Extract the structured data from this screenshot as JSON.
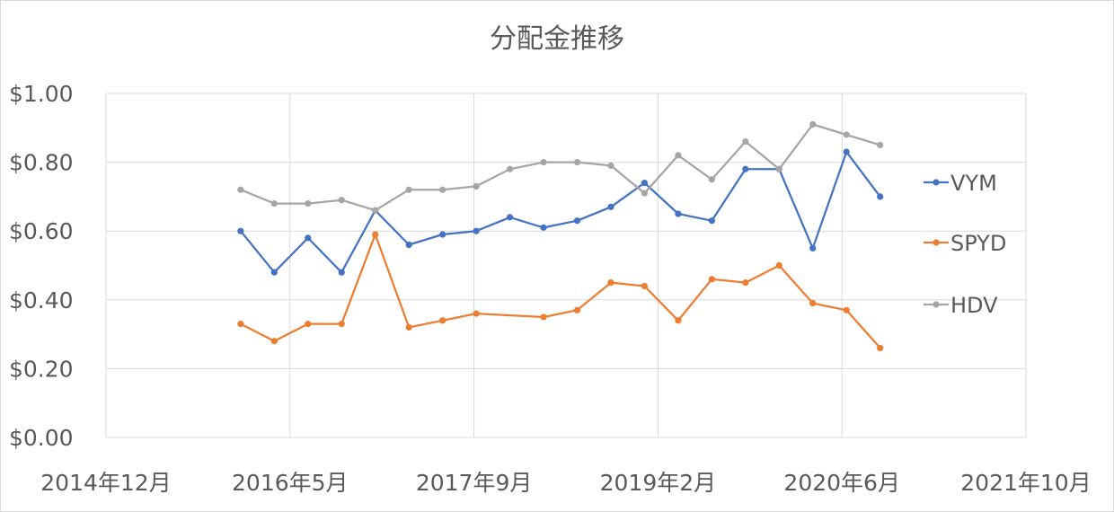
{
  "chart_data": {
    "type": "line",
    "title": "分配金推移",
    "xlabel": "",
    "ylabel": "",
    "ylim": [
      0,
      1
    ],
    "y_ticks": [
      "$0.00",
      "$0.20",
      "$0.40",
      "$0.60",
      "$0.80",
      "$1.00"
    ],
    "xlim": [
      "2014-12",
      "2021-10"
    ],
    "x_ticks": [
      "2014年12月",
      "2016年5月",
      "2017年9月",
      "2019年2月",
      "2020年6月",
      "2021年10月"
    ],
    "grid": true,
    "legend_position": "right",
    "x": [
      "2015-12",
      "2016-03",
      "2016-06",
      "2016-09",
      "2016-12",
      "2017-03",
      "2017-06",
      "2017-09",
      "2017-12",
      "2018-03",
      "2018-06",
      "2018-09",
      "2018-12",
      "2019-03",
      "2019-06",
      "2019-09",
      "2019-12",
      "2020-03",
      "2020-06",
      "2020-09"
    ],
    "series": [
      {
        "name": "VYM",
        "color": "#4472c4",
        "values": [
          0.6,
          0.48,
          0.58,
          0.48,
          0.66,
          0.56,
          0.59,
          0.6,
          0.64,
          0.61,
          0.63,
          0.67,
          0.74,
          0.65,
          0.63,
          0.78,
          0.78,
          0.55,
          0.83,
          0.7
        ],
        "x": [
          "2015-12",
          "2016-03",
          "2016-06",
          "2016-09",
          "2016-12",
          "2017-03",
          "2017-06",
          "2017-09",
          "2017-12",
          "2018-03",
          "2018-06",
          "2018-09",
          "2018-12",
          "2019-03",
          "2019-06",
          "2019-09",
          "2019-12",
          "2020-03",
          "2020-06",
          "2020-09"
        ]
      },
      {
        "name": "SPYD",
        "color": "#ed7d31",
        "values": [
          0.33,
          0.28,
          0.33,
          0.33,
          0.59,
          0.32,
          0.34,
          0.36,
          0.35,
          0.37,
          0.45,
          0.44,
          0.34,
          0.46,
          0.45,
          0.5,
          0.39,
          0.37,
          0.26
        ],
        "x": [
          "2015-12",
          "2016-03",
          "2016-06",
          "2016-09",
          "2016-12",
          "2017-03",
          "2017-06",
          "2017-09",
          "2018-03",
          "2018-06",
          "2018-09",
          "2018-12",
          "2019-03",
          "2019-06",
          "2019-09",
          "2019-12",
          "2020-03",
          "2020-06",
          "2020-09"
        ]
      },
      {
        "name": "HDV",
        "color": "#a5a5a5",
        "values": [
          0.72,
          0.68,
          0.68,
          0.69,
          0.66,
          0.72,
          0.72,
          0.73,
          0.78,
          0.8,
          0.8,
          0.79,
          0.71,
          0.82,
          0.75,
          0.86,
          0.78,
          0.91,
          0.88,
          0.85
        ],
        "x": [
          "2015-12",
          "2016-03",
          "2016-06",
          "2016-09",
          "2016-12",
          "2017-03",
          "2017-06",
          "2017-09",
          "2017-12",
          "2018-03",
          "2018-06",
          "2018-09",
          "2018-12",
          "2019-03",
          "2019-06",
          "2019-09",
          "2019-12",
          "2020-03",
          "2020-06",
          "2020-09"
        ]
      }
    ]
  }
}
